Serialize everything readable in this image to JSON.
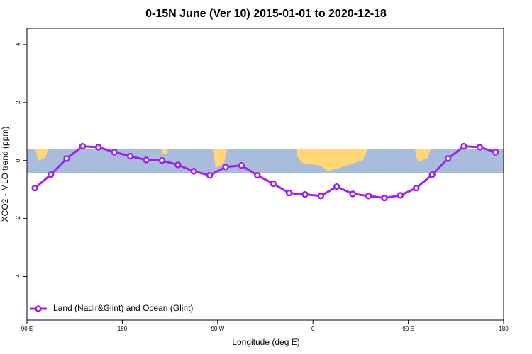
{
  "chart_data": {
    "type": "line",
    "title": "0-15N June (Ver 10)   2015-01-01 to 2020-12-18",
    "x_label": "Longitude (deg E)",
    "y_label": "XCO2 - MLO trend (ppm)",
    "x": [
      97.5,
      112.5,
      127.5,
      142.5,
      157.5,
      172.5,
      187.5,
      202.5,
      217.5,
      232.5,
      247.5,
      262.5,
      277.5,
      292.5,
      307.5,
      322.5,
      337.5,
      352.5,
      367.5,
      382.5,
      397.5,
      412.5,
      427.5,
      442.5,
      457.5,
      472.5,
      487.5,
      502.5,
      517.5,
      532.5
    ],
    "series": [
      {
        "name": "Land (Nadir&Glint) and Ocean (Glint)",
        "color": "#a020f0",
        "values": [
          -0.95,
          -0.49,
          0.07,
          0.49,
          0.46,
          0.29,
          0.15,
          0.02,
          0.0,
          -0.15,
          -0.37,
          -0.51,
          -0.22,
          -0.17,
          -0.51,
          -0.8,
          -1.12,
          -1.17,
          -1.22,
          -0.9,
          -1.15,
          -1.22,
          -1.29,
          -1.2,
          -0.95,
          -0.49,
          0.07,
          0.49,
          0.46,
          0.29
        ]
      }
    ],
    "xlim": [
      90,
      540
    ],
    "ylim": [
      -5.5,
      4.56
    ],
    "xticks": [
      {
        "value": 90,
        "label": "90 E"
      },
      {
        "value": 180,
        "label": "180"
      },
      {
        "value": 270,
        "label": "90 W"
      },
      {
        "value": 360,
        "label": "0"
      },
      {
        "value": 450,
        "label": "90 E"
      },
      {
        "value": 540,
        "label": "180"
      }
    ],
    "yticks": [
      -4,
      -2,
      0,
      2,
      4
    ],
    "legend": "bottom-left"
  }
}
